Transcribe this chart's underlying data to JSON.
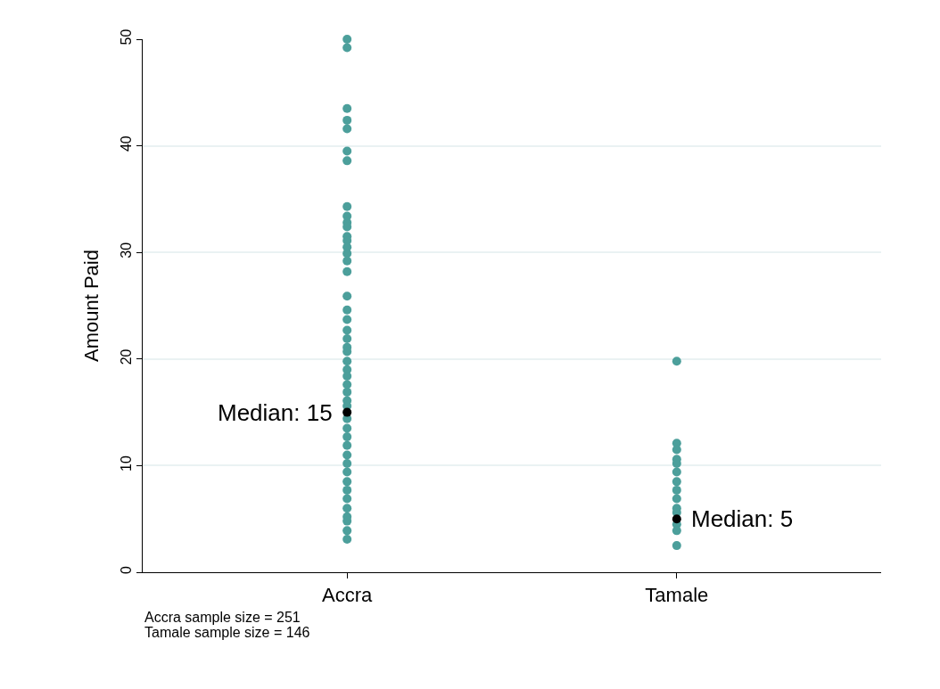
{
  "chart_data": {
    "type": "scatter",
    "ylabel": "Amount Paid",
    "categories": [
      "Accra",
      "Tamale"
    ],
    "ylim": [
      0,
      50
    ],
    "yticks": [
      0,
      10,
      20,
      30,
      40,
      50
    ],
    "grid": "y",
    "marker": "circle",
    "series": [
      {
        "color": "#4c9f9b",
        "x": [
          "Accra",
          "Accra",
          "Accra",
          "Accra",
          "Accra",
          "Accra",
          "Accra",
          "Accra",
          "Accra",
          "Accra",
          "Accra",
          "Accra",
          "Accra",
          "Accra",
          "Accra",
          "Accra",
          "Accra",
          "Accra",
          "Accra",
          "Accra",
          "Accra",
          "Accra",
          "Accra",
          "Accra",
          "Accra",
          "Accra",
          "Accra",
          "Accra",
          "Accra",
          "Accra",
          "Accra",
          "Accra",
          "Accra",
          "Accra",
          "Accra",
          "Accra",
          "Accra",
          "Accra",
          "Accra",
          "Accra",
          "Accra",
          "Accra",
          "Accra",
          "Accra",
          "Accra",
          "Accra"
        ],
        "values": [
          50.0,
          49.2,
          43.5,
          42.4,
          41.6,
          39.5,
          38.6,
          34.3,
          33.4,
          32.8,
          32.4,
          31.5,
          31.1,
          30.5,
          29.9,
          29.2,
          28.2,
          25.9,
          24.6,
          23.7,
          22.7,
          21.9,
          21.1,
          20.7,
          19.8,
          19.0,
          18.4,
          17.6,
          16.9,
          16.1,
          15.6,
          14.4,
          13.5,
          12.7,
          11.9,
          11.0,
          10.2,
          9.4,
          8.5,
          7.7,
          6.9,
          6.0,
          5.2,
          4.8,
          3.9,
          3.1
        ]
      },
      {
        "color": "#4c9f9b",
        "x": [
          "Tamale",
          "Tamale",
          "Tamale",
          "Tamale",
          "Tamale",
          "Tamale",
          "Tamale",
          "Tamale",
          "Tamale",
          "Tamale",
          "Tamale",
          "Tamale",
          "Tamale",
          "Tamale"
        ],
        "values": [
          19.8,
          12.1,
          11.5,
          10.6,
          10.2,
          9.4,
          8.5,
          7.7,
          6.9,
          6.0,
          5.6,
          4.5,
          3.9,
          2.5
        ]
      },
      {
        "color": "#000000",
        "x": [
          "Accra",
          "Tamale"
        ],
        "values": [
          15,
          5
        ]
      }
    ],
    "annotations": [
      {
        "text": "Median: 15",
        "x": "Accra",
        "y": 15
      },
      {
        "text": "Median: 5",
        "x": "Tamale",
        "y": 5
      },
      "Accra sample size = 251",
      "Tamale sample size = 146"
    ]
  }
}
